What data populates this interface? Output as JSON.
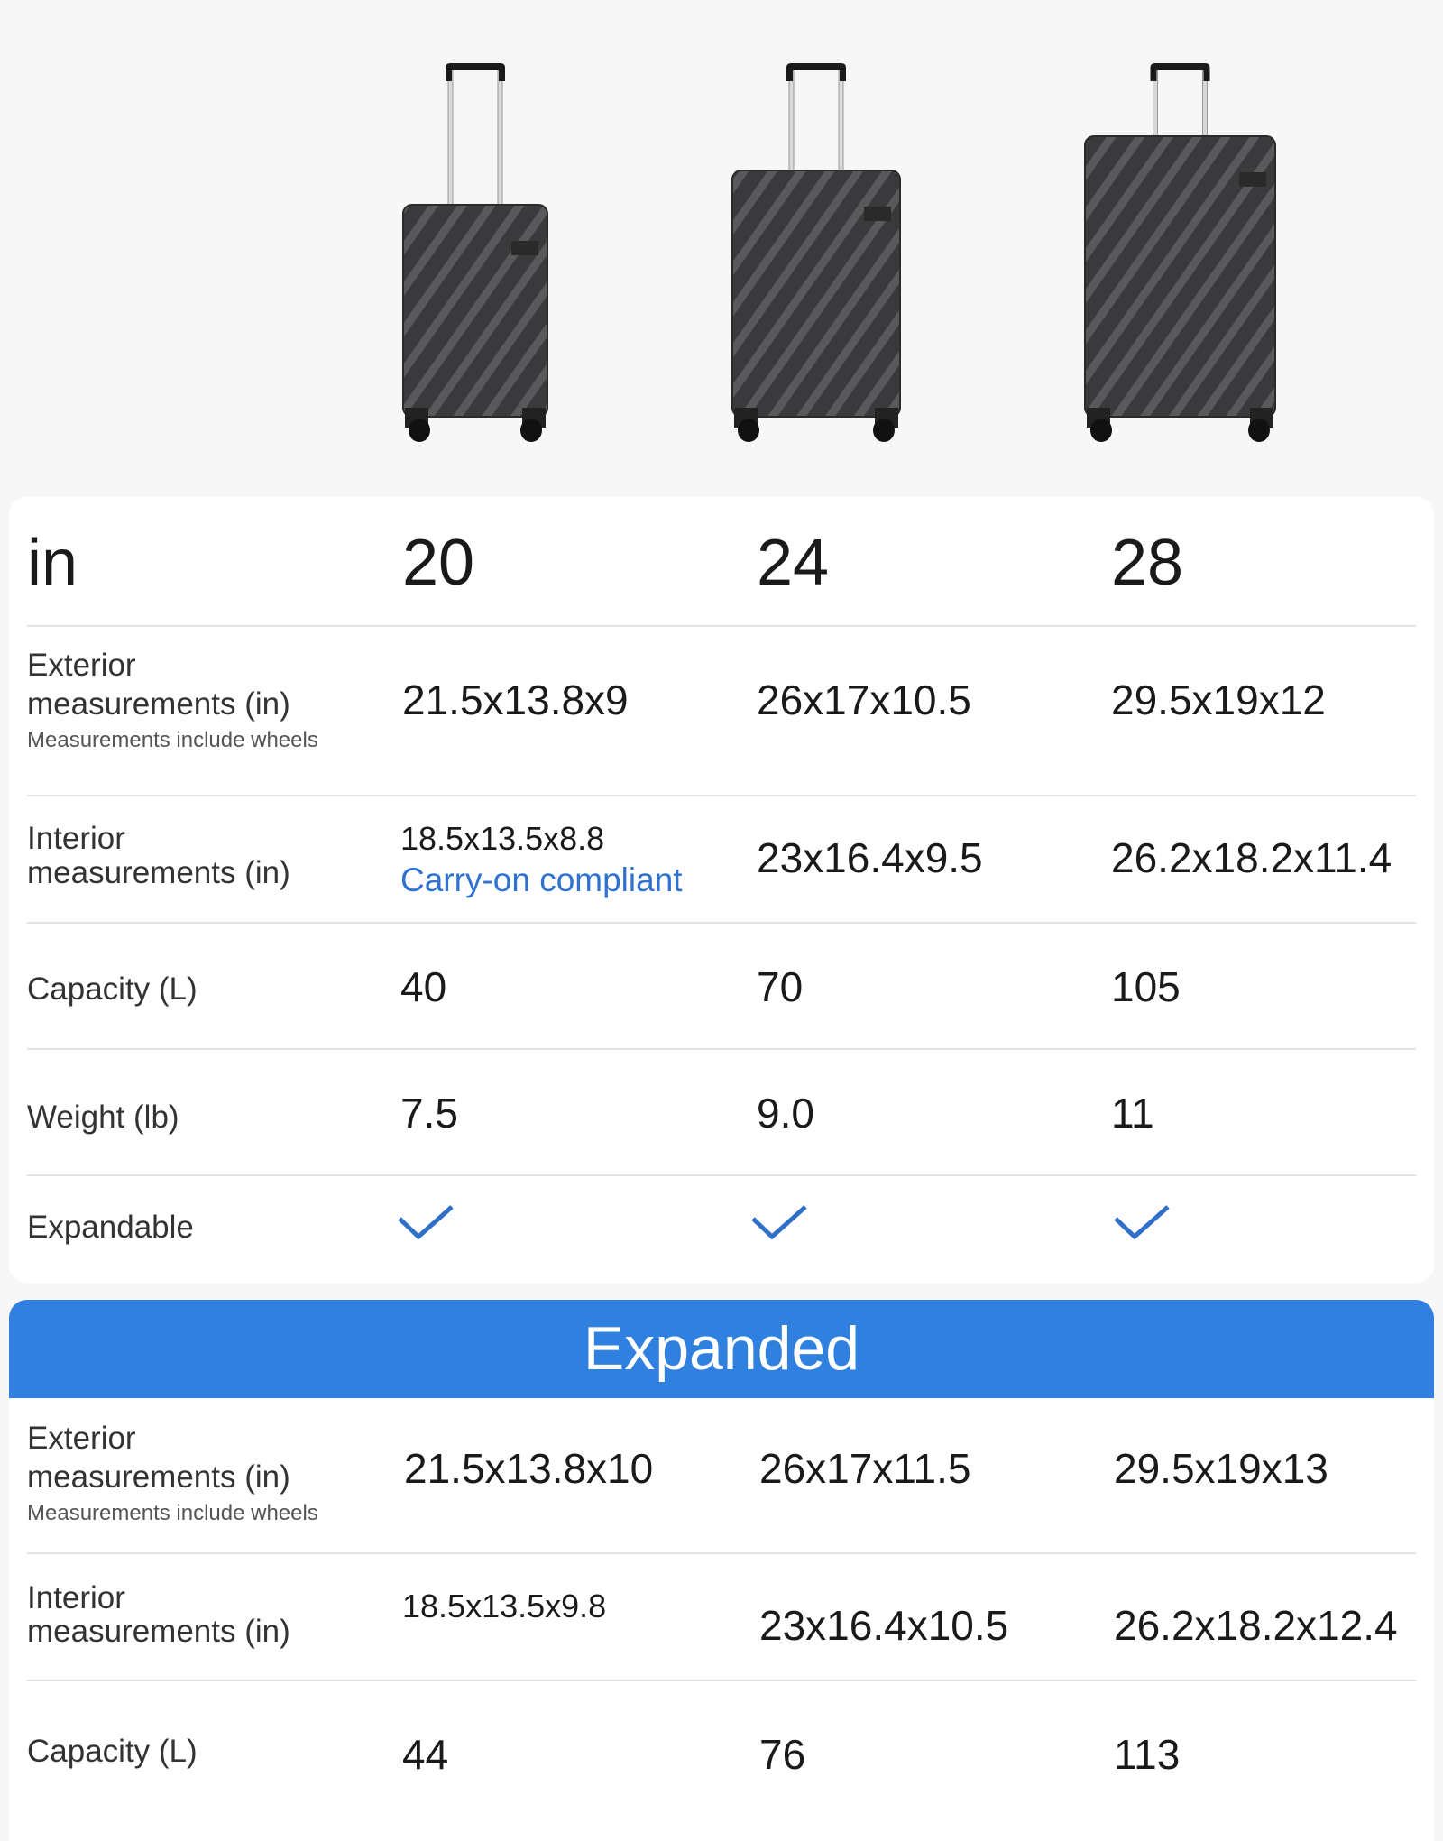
{
  "header": {
    "unit": "in",
    "sizes": [
      "20",
      "24",
      "28"
    ]
  },
  "product_images": [
    {
      "size": "20",
      "icon": "suitcase-icon"
    },
    {
      "size": "24",
      "icon": "suitcase-icon"
    },
    {
      "size": "28",
      "icon": "suitcase-icon"
    }
  ],
  "standard": {
    "exterior": {
      "label_1": "Exterior",
      "label_2": "measurements (in)",
      "note": "Measurements include wheels",
      "values": [
        "21.5x13.8x9",
        "26x17x10.5",
        "29.5x19x12"
      ]
    },
    "interior": {
      "label_1": "Interior",
      "label_2": "measurements (in)",
      "values": [
        "18.5x13.5x8.8",
        "23x16.4x9.5",
        "26.2x18.2x11.4"
      ],
      "carry_on_note": "Carry-on compliant"
    },
    "capacity": {
      "label": "Capacity (L)",
      "values": [
        "40",
        "70",
        "105"
      ]
    },
    "weight": {
      "label": "Weight (lb)",
      "values": [
        "7.5",
        "9.0",
        "11"
      ]
    },
    "expandable": {
      "label": "Expandable",
      "values": [
        true,
        true,
        true
      ],
      "icon": "checkmark-icon"
    }
  },
  "expanded": {
    "title": "Expanded",
    "exterior": {
      "label_1": "Exterior",
      "label_2": "measurements (in)",
      "note": "Measurements include wheels",
      "values": [
        "21.5x13.8x10",
        "26x17x11.5",
        "29.5x19x13"
      ]
    },
    "interior": {
      "label_1": "Interior",
      "label_2": "measurements (in)",
      "values": [
        "18.5x13.5x9.8",
        "23x16.4x10.5",
        "26.2x18.2x12.4"
      ]
    },
    "capacity": {
      "label": "Capacity (L)",
      "values": [
        "44",
        "76",
        "113"
      ]
    }
  },
  "colors": {
    "accent": "#3080e0",
    "link": "#2f72cf",
    "check": "#2f6fc8",
    "suitcase": "#3a3a3c"
  }
}
